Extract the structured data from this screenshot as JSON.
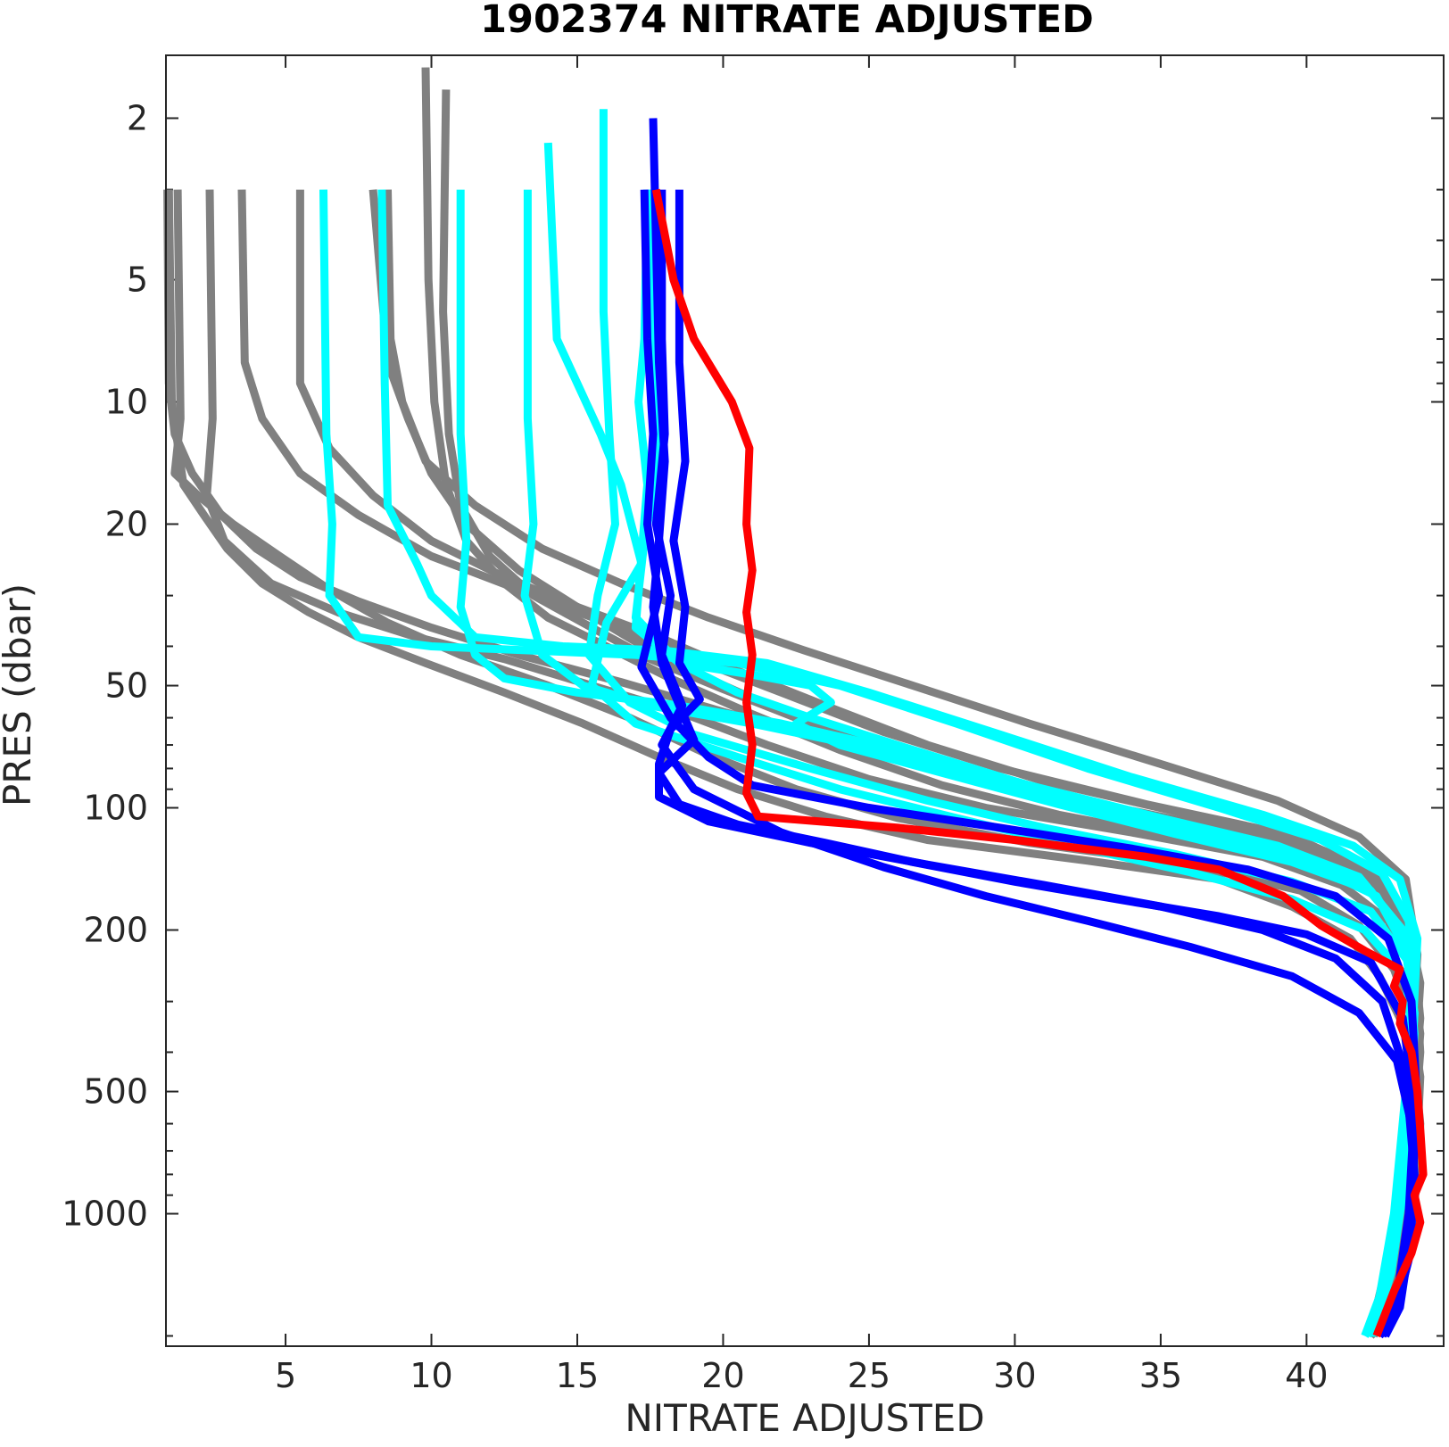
{
  "chart_data": {
    "type": "line",
    "title": "1902374  NITRATE ADJUSTED",
    "xlabel": "NITRATE ADJUSTED",
    "ylabel": "PRES (dbar)",
    "xlim": [
      0.9,
      44.7
    ],
    "ylim": [
      1.4,
      2120
    ],
    "y_scale": "log",
    "y_reversed": true,
    "grid": false,
    "legend": "none",
    "xticks": [
      5,
      10,
      15,
      20,
      25,
      30,
      35,
      40
    ],
    "yticks": [
      2,
      5,
      10,
      20,
      50,
      100,
      200,
      500,
      1000
    ],
    "colors": {
      "historical": "#808080",
      "recent": "#00ffff",
      "previous": "#0000ff",
      "latest": "#ff0000"
    },
    "series": [
      {
        "group": "historical",
        "x": [
          1.0,
          1.1,
          1.5,
          2.2,
          3.0,
          4.2,
          5.8,
          7.5,
          9.8,
          12.5,
          15.2,
          17.8,
          20.5,
          23.5,
          27.0,
          32.5,
          37.0,
          39.5,
          41.5,
          42.5,
          43.2,
          43.7,
          43.9,
          43.8,
          43.6,
          43.3,
          42.8,
          42.2
        ],
        "y": [
          3,
          10,
          16,
          19,
          23,
          28,
          33,
          38,
          44,
          52,
          62,
          75,
          90,
          105,
          120,
          135,
          150,
          175,
          210,
          260,
          330,
          430,
          600,
          800,
          1100,
          1450,
          1800,
          2000
        ]
      },
      {
        "group": "historical",
        "x": [
          1.3,
          1.4,
          1.2,
          2.0,
          3.2,
          4.8,
          6.5,
          8.5,
          11.0,
          14.0,
          16.8,
          19.5,
          22.5,
          26.0,
          30.5,
          36.0,
          39.8,
          41.8,
          43.0,
          43.6,
          43.9,
          43.8,
          43.5,
          43.2,
          42.7,
          42.2
        ],
        "y": [
          3,
          11,
          15,
          17,
          20,
          24,
          29,
          35,
          42,
          50,
          60,
          74,
          90,
          106,
          122,
          138,
          160,
          195,
          250,
          330,
          460,
          650,
          950,
          1350,
          1750,
          2000
        ]
      },
      {
        "group": "historical",
        "x": [
          2.4,
          2.5,
          2.3,
          2.9,
          4.5,
          6.8,
          9.5,
          12.5,
          15.5,
          18.5,
          21.5,
          25.0,
          29.0,
          34.0,
          38.5,
          41.2,
          42.8,
          43.6,
          43.9,
          43.7,
          43.3,
          42.8,
          42.3
        ],
        "y": [
          3,
          11,
          17,
          22,
          28,
          33,
          38,
          43,
          50,
          58,
          70,
          85,
          100,
          115,
          132,
          155,
          190,
          250,
          360,
          550,
          900,
          1400,
          1950
        ]
      },
      {
        "group": "historical",
        "x": [
          3.5,
          3.6,
          4.2,
          5.5,
          7.5,
          10.0,
          13.0,
          16.0,
          19.0,
          22.0,
          25.5,
          29.5,
          34.5,
          39.0,
          42.0,
          43.4,
          43.8,
          43.6,
          43.2,
          42.6
        ],
        "y": [
          3,
          8,
          11,
          15,
          19,
          24,
          29,
          35,
          43,
          52,
          65,
          80,
          98,
          115,
          140,
          190,
          300,
          600,
          1200,
          1900
        ]
      },
      {
        "group": "historical",
        "x": [
          5.5,
          5.5,
          6.5,
          8.0,
          10.0,
          12.5,
          15.0,
          17.8,
          20.5,
          23.5,
          27.0,
          31.0,
          36.0,
          40.0,
          42.5,
          43.6,
          43.9,
          43.5,
          43.0,
          42.4
        ],
        "y": [
          3,
          9,
          13,
          17,
          22,
          27,
          32,
          38,
          46,
          56,
          70,
          86,
          104,
          122,
          148,
          200,
          330,
          700,
          1350,
          1950
        ]
      },
      {
        "group": "historical",
        "x": [
          8.0,
          8.5,
          9.2,
          10.0,
          11.2,
          13.0,
          15.0,
          17.0,
          19.2,
          21.8,
          25.0,
          28.5,
          32.0,
          35.5,
          39.0,
          41.8,
          43.3,
          43.8,
          43.6,
          43.1,
          42.5
        ],
        "y": [
          3,
          8,
          11,
          15,
          20,
          26,
          32,
          39,
          47,
          57,
          70,
          85,
          100,
          114,
          128,
          148,
          190,
          290,
          600,
          1300,
          1950
        ]
      },
      {
        "group": "historical",
        "x": [
          9.8,
          9.9,
          10.1,
          10.5,
          11.2,
          12.5,
          14.0,
          16.0,
          18.2,
          20.8,
          24.0,
          27.5,
          31.5,
          36.0,
          40.0,
          42.6,
          43.7,
          43.9,
          43.5,
          42.9,
          42.3
        ],
        "y": [
          1.5,
          5,
          10,
          16,
          22,
          28,
          34,
          40,
          48,
          58,
          72,
          88,
          104,
          120,
          138,
          165,
          230,
          400,
          900,
          1600,
          2000
        ]
      },
      {
        "group": "historical",
        "x": [
          10.5,
          10.4,
          10.6,
          11.0,
          12.0,
          13.5,
          15.5,
          17.5,
          20.0,
          23.0,
          26.5,
          30.5,
          35.0,
          39.5,
          42.3,
          43.5,
          43.8,
          43.4,
          42.8,
          42.2
        ],
        "y": [
          1.7,
          6,
          12,
          18,
          24,
          30,
          36,
          43,
          51,
          62,
          76,
          92,
          108,
          125,
          150,
          210,
          380,
          850,
          1550,
          2000
        ]
      },
      {
        "group": "historical",
        "x": [
          8.5,
          8.6,
          9.0,
          9.8,
          11.5,
          13.8,
          16.5,
          19.5,
          22.8,
          26.5,
          30.5,
          35.0,
          39.0,
          41.8,
          43.4,
          43.8,
          43.5,
          42.9,
          42.2
        ],
        "y": [
          3,
          7,
          10,
          14,
          18,
          23,
          28,
          34,
          41,
          50,
          62,
          78,
          96,
          118,
          150,
          230,
          500,
          1200,
          1950
        ]
      },
      {
        "group": "historical",
        "x": [
          0.95,
          1.0,
          1.2,
          1.8,
          2.8,
          4.0,
          5.5,
          7.5,
          10.0,
          13.0,
          16.5,
          20.0,
          24.0,
          28.5,
          33.5,
          38.5,
          41.8,
          43.4,
          43.9,
          43.7,
          43.3,
          42.8,
          42.2
        ],
        "y": [
          3,
          9,
          12,
          15,
          19,
          23,
          27,
          31,
          36,
          42,
          49,
          58,
          70,
          84,
          100,
          118,
          142,
          185,
          270,
          450,
          850,
          1500,
          2000
        ]
      },
      {
        "group": "recent",
        "x": [
          6.3,
          6.4,
          6.6,
          6.5,
          7.5,
          10.0,
          13.5,
          17.0,
          20.5,
          24.0,
          28.0,
          32.5,
          37.0,
          40.5,
          42.6,
          43.5,
          43.7,
          43.4,
          43.0,
          42.5,
          42.0
        ],
        "y": [
          3,
          12,
          20,
          30,
          38,
          40,
          41,
          42,
          44,
          50,
          62,
          80,
          100,
          120,
          145,
          190,
          280,
          500,
          1000,
          1600,
          2000
        ]
      },
      {
        "group": "recent",
        "x": [
          8.3,
          8.4,
          8.5,
          9.5,
          10.0,
          11.5,
          14.5,
          18.0,
          21.5,
          25.0,
          29.5,
          34.0,
          38.5,
          41.6,
          43.2,
          43.8,
          43.6,
          43.1,
          42.5
        ],
        "y": [
          3,
          9,
          18,
          25,
          30,
          38,
          40,
          41,
          44,
          52,
          66,
          84,
          104,
          124,
          150,
          210,
          400,
          900,
          1800
        ]
      },
      {
        "group": "recent",
        "x": [
          11.0,
          11.0,
          11.2,
          11.0,
          11.5,
          12.5,
          15.0,
          18.5,
          22.0,
          26.0,
          30.5,
          35.0,
          39.0,
          41.8,
          43.3,
          43.7,
          43.4,
          42.8,
          42.2
        ],
        "y": [
          3,
          12,
          22,
          32,
          42,
          48,
          52,
          56,
          62,
          72,
          88,
          106,
          124,
          148,
          200,
          320,
          700,
          1400,
          2000
        ]
      },
      {
        "group": "recent",
        "x": [
          13.3,
          13.3,
          13.5,
          13.2,
          13.8,
          15.2,
          17.5,
          21.0,
          24.5,
          28.5,
          32.5,
          36.5,
          40.0,
          42.4,
          43.5,
          43.7,
          43.3,
          42.7,
          42.1
        ],
        "y": [
          3,
          11,
          20,
          30,
          42,
          50,
          56,
          62,
          70,
          82,
          98,
          116,
          136,
          165,
          230,
          420,
          900,
          1600,
          2000
        ]
      },
      {
        "group": "recent",
        "x": [
          14.0,
          14.3,
          15.8,
          16.5,
          17.2,
          16.0,
          15.5,
          17.0,
          20.5,
          24.0,
          28.0,
          32.0,
          36.0,
          39.5,
          42.0,
          43.4,
          43.7,
          43.4,
          42.9,
          42.3
        ],
        "y": [
          2.3,
          7,
          12,
          16,
          25,
          35,
          50,
          62,
          75,
          90,
          106,
          124,
          144,
          168,
          200,
          260,
          420,
          800,
          1400,
          1950
        ]
      },
      {
        "group": "recent",
        "x": [
          15.9,
          15.9,
          16.1,
          16.3,
          15.7,
          15.4,
          16.8,
          19.0,
          23.0,
          27.0,
          31.0,
          35.5,
          39.5,
          42.2,
          43.5,
          43.7,
          43.3,
          42.7,
          42.1
        ],
        "y": [
          1.9,
          6,
          12,
          20,
          30,
          42,
          55,
          66,
          80,
          96,
          112,
          130,
          152,
          180,
          240,
          420,
          900,
          1600,
          2000
        ]
      },
      {
        "group": "recent",
        "x": [
          17.4,
          17.3,
          17.1,
          17.4,
          17.2,
          17.0,
          18.5,
          21.0,
          23.0,
          23.7,
          22.5,
          24.0,
          27.5,
          31.5,
          35.5,
          39.5,
          42.2,
          43.4,
          43.7,
          43.4,
          42.9,
          42.3
        ],
        "y": [
          3,
          7,
          10,
          16,
          24,
          36,
          44,
          47,
          50,
          55,
          62,
          70,
          82,
          98,
          116,
          136,
          160,
          210,
          360,
          700,
          1300,
          2000
        ]
      },
      {
        "group": "recent",
        "x": [
          17.5,
          17.6,
          17.8,
          17.3,
          17.0,
          18.5,
          20.5,
          23.0,
          26.5,
          30.0,
          34.0,
          38.5,
          41.8,
          43.3,
          43.7,
          43.5,
          43.1,
          42.6,
          42.0
        ],
        "y": [
          3,
          8,
          14,
          22,
          34,
          44,
          52,
          60,
          72,
          86,
          104,
          124,
          150,
          200,
          320,
          600,
          1100,
          1700,
          2000
        ]
      },
      {
        "group": "previous",
        "x": [
          17.3,
          17.4,
          17.6,
          17.4,
          17.8,
          17.2,
          18.2,
          19.5,
          21.0,
          25.0,
          29.5,
          34.0,
          38.0,
          41.0,
          42.8,
          43.6,
          43.8,
          43.5,
          43.1,
          42.6
        ],
        "y": [
          3,
          7,
          12,
          20,
          30,
          45,
          60,
          75,
          88,
          100,
          112,
          126,
          142,
          165,
          210,
          300,
          550,
          1100,
          1700,
          2000
        ]
      },
      {
        "group": "previous",
        "x": [
          17.6,
          17.8,
          18.0,
          17.8,
          17.6,
          17.9,
          18.5,
          19.0,
          17.8,
          18.5,
          20.5,
          23.5,
          26.5,
          30.0,
          33.5,
          37.0,
          40.0,
          42.2,
          43.3,
          43.7,
          43.5,
          43.1,
          42.6
        ],
        "y": [
          2,
          8,
          14,
          22,
          32,
          44,
          56,
          68,
          82,
          98,
          110,
          122,
          136,
          152,
          168,
          185,
          205,
          240,
          330,
          550,
          1000,
          1600,
          2000
        ]
      },
      {
        "group": "previous",
        "x": [
          18.5,
          18.5,
          18.7,
          18.3,
          18.7,
          18.5,
          19.2,
          18.2,
          17.8,
          17.8,
          19.5,
          23.0,
          27.0,
          31.0,
          35.0,
          38.5,
          41.0,
          42.6,
          43.4,
          43.7,
          43.5,
          43.0,
          42.5
        ],
        "y": [
          3,
          8,
          14,
          22,
          32,
          44,
          54,
          64,
          78,
          94,
          108,
          122,
          138,
          155,
          175,
          200,
          235,
          300,
          450,
          800,
          1300,
          1800,
          2000
        ]
      },
      {
        "group": "previous",
        "x": [
          17.9,
          17.9,
          18.0,
          17.7,
          18.2,
          17.9,
          18.6,
          17.9,
          19.0,
          22.0,
          25.5,
          29.0,
          32.5,
          36.0,
          39.5,
          41.8,
          43.1,
          43.7,
          43.6,
          43.2,
          42.7
        ],
        "y": [
          3,
          7,
          12,
          20,
          30,
          42,
          56,
          70,
          90,
          115,
          140,
          165,
          190,
          220,
          260,
          320,
          420,
          650,
          1100,
          1700,
          2000
        ]
      },
      {
        "group": "latest",
        "x": [
          17.7,
          18.3,
          19.0,
          20.3,
          20.9,
          20.8,
          21.0,
          20.8,
          21.0,
          20.8,
          21.0,
          20.8,
          21.2,
          26.0,
          30.0,
          34.5,
          37.0,
          39.2,
          40.5,
          42.0,
          43.2,
          43.0,
          43.3,
          43.2,
          43.6,
          43.8,
          43.9,
          44.0,
          43.7,
          43.9,
          43.6,
          43.0,
          42.4
        ],
        "y": [
          3,
          5,
          7,
          10,
          13,
          20,
          26,
          33,
          42,
          55,
          70,
          92,
          105,
          112,
          120,
          132,
          142,
          165,
          195,
          225,
          250,
          275,
          300,
          340,
          400,
          500,
          620,
          800,
          900,
          1050,
          1250,
          1550,
          2000
        ]
      }
    ]
  }
}
